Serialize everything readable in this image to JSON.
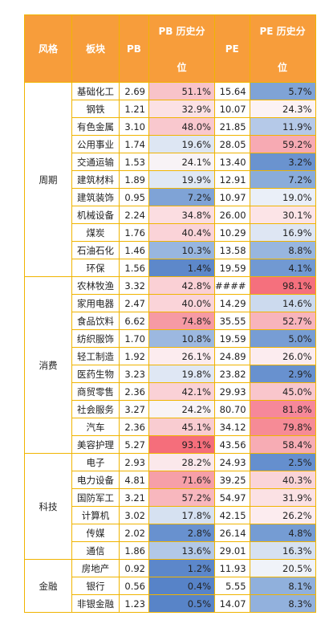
{
  "headers": {
    "style": "风格",
    "sector": "板块",
    "pb": "PB",
    "pb_hist": [
      "PB 历史分",
      "位"
    ],
    "pe": "PE",
    "pe_hist": [
      "PE 历史分",
      "位"
    ]
  },
  "groups": [
    {
      "style": "周期",
      "rows": [
        {
          "sector": "基础化工",
          "pb": "2.69",
          "pb_pct": "51.1%",
          "pb_color": "#f8c3c9",
          "pe": "15.64",
          "pe_pct": "5.7%",
          "pe_color": "#7fa3d6"
        },
        {
          "sector": "钢铁",
          "pb": "1.21",
          "pb_pct": "32.9%",
          "pb_color": "#fbe1e4",
          "pe": "10.07",
          "pe_pct": "24.3%",
          "pe_color": "#fcf2f4"
        },
        {
          "sector": "有色金属",
          "pb": "3.10",
          "pb_pct": "48.0%",
          "pb_color": "#f9c8ce",
          "pe": "21.85",
          "pe_pct": "11.9%",
          "pe_color": "#b5c9e8"
        },
        {
          "sector": "公用事业",
          "pb": "1.74",
          "pb_pct": "19.6%",
          "pb_color": "#dde6f3",
          "pe": "28.05",
          "pe_pct": "59.2%",
          "pe_color": "#f7aab3"
        },
        {
          "sector": "交通运输",
          "pb": "1.53",
          "pb_pct": "24.1%",
          "pb_color": "#f8f3f6",
          "pe": "13.40",
          "pe_pct": "3.2%",
          "pe_color": "#6a93cf"
        },
        {
          "sector": "建筑材料",
          "pb": "1.89",
          "pb_pct": "19.9%",
          "pb_color": "#e0e8f4",
          "pe": "12.91",
          "pe_pct": "7.2%",
          "pe_color": "#8aacda"
        },
        {
          "sector": "建筑装饰",
          "pb": "0.95",
          "pb_pct": "7.2%",
          "pb_color": "#7fa3d6",
          "pe": "10.97",
          "pe_pct": "19.0%",
          "pe_color": "#eaeff8"
        },
        {
          "sector": "机械设备",
          "pb": "2.24",
          "pb_pct": "34.8%",
          "pb_color": "#fbdde1",
          "pe": "26.00",
          "pe_pct": "30.1%",
          "pe_color": "#fce4e7"
        },
        {
          "sector": "煤炭",
          "pb": "1.76",
          "pb_pct": "40.4%",
          "pb_color": "#fad3d8",
          "pe": "10.29",
          "pe_pct": "16.9%",
          "pe_color": "#dee6f3"
        },
        {
          "sector": "石油石化",
          "pb": "1.46",
          "pb_pct": "10.3%",
          "pb_color": "#98b6df",
          "pe": "13.58",
          "pe_pct": "8.8%",
          "pe_color": "#98b6df"
        },
        {
          "sector": "环保",
          "pb": "1.56",
          "pb_pct": "1.4%",
          "pb_color": "#5d88ca",
          "pe": "19.59",
          "pe_pct": "4.1%",
          "pe_color": "#7199d2"
        }
      ]
    },
    {
      "style": "消费",
      "rows": [
        {
          "sector": "农林牧渔",
          "pb": "3.32",
          "pb_pct": "42.8%",
          "pb_color": "#fad0d5",
          "pe": "####",
          "pe_pct": "98.1%",
          "pe_color": "#f5707d"
        },
        {
          "sector": "家用电器",
          "pb": "2.47",
          "pb_pct": "40.0%",
          "pb_color": "#fad4d9",
          "pe": "14.29",
          "pe_pct": "14.6%",
          "pe_color": "#ccdaee"
        },
        {
          "sector": "食品饮料",
          "pb": "6.62",
          "pb_pct": "74.8%",
          "pb_color": "#f69aa4",
          "pe": "35.55",
          "pe_pct": "52.7%",
          "pe_color": "#f8b4bc"
        },
        {
          "sector": "纺织服饰",
          "pb": "1.70",
          "pb_pct": "10.8%",
          "pb_color": "#9cb8e0",
          "pe": "19.59",
          "pe_pct": "5.0%",
          "pe_color": "#779dd4"
        },
        {
          "sector": "轻工制造",
          "pb": "1.92",
          "pb_pct": "26.1%",
          "pb_color": "#fcecef",
          "pe": "24.89",
          "pe_pct": "26.0%",
          "pe_color": "#fcecef"
        },
        {
          "sector": "医药生物",
          "pb": "3.23",
          "pb_pct": "19.8%",
          "pb_color": "#dfe7f4",
          "pe": "23.82",
          "pe_pct": "2.9%",
          "pe_color": "#6891cf"
        },
        {
          "sector": "商贸零售",
          "pb": "2.36",
          "pb_pct": "42.1%",
          "pb_color": "#fad1d6",
          "pe": "29.93",
          "pe_pct": "45.0%",
          "pe_color": "#f9c6cc"
        },
        {
          "sector": "社会服务",
          "pb": "3.27",
          "pb_pct": "24.2%",
          "pb_color": "#f8f3f6",
          "pe": "80.70",
          "pe_pct": "81.8%",
          "pe_color": "#f6889a"
        },
        {
          "sector": "汽车",
          "pb": "2.36",
          "pb_pct": "45.1%",
          "pb_color": "#f9ccd1",
          "pe": "34.12",
          "pe_pct": "79.8%",
          "pe_color": "#f68b96"
        },
        {
          "sector": "美容护理",
          "pb": "5.27",
          "pb_pct": "93.1%",
          "pb_color": "#f56e7b",
          "pe": "43.56",
          "pe_pct": "58.4%",
          "pe_color": "#f7acb4"
        }
      ]
    },
    {
      "style": "科技",
      "rows": [
        {
          "sector": "电子",
          "pb": "2.93",
          "pb_pct": "28.2%",
          "pb_color": "#fbe8eb",
          "pe": "24.93",
          "pe_pct": "2.5%",
          "pe_color": "#658fce"
        },
        {
          "sector": "电力设备",
          "pb": "4.81",
          "pb_pct": "71.6%",
          "pb_color": "#f69fa8",
          "pe": "39.25",
          "pe_pct": "40.3%",
          "pe_color": "#fad4d8"
        },
        {
          "sector": "国防军工",
          "pb": "3.21",
          "pb_pct": "57.2%",
          "pb_color": "#f8b7be",
          "pe": "54.97",
          "pe_pct": "31.9%",
          "pe_color": "#fbe1e4"
        },
        {
          "sector": "计算机",
          "pb": "3.02",
          "pb_pct": "17.8%",
          "pb_color": "#d6e1f1",
          "pe": "42.15",
          "pe_pct": "26.2%",
          "pe_color": "#fcecef"
        },
        {
          "sector": "传媒",
          "pb": "2.02",
          "pb_pct": "2.8%",
          "pb_color": "#6891cf",
          "pe": "26.14",
          "pe_pct": "4.8%",
          "pe_color": "#759cd3"
        },
        {
          "sector": "通信",
          "pb": "1.86",
          "pb_pct": "13.6%",
          "pb_color": "#b2c8e7",
          "pe": "29.01",
          "pe_pct": "16.3%",
          "pe_color": "#d6e1f1"
        }
      ]
    },
    {
      "style": "金融",
      "rows": [
        {
          "sector": "房地产",
          "pb": "0.92",
          "pb_pct": "1.2%",
          "pb_color": "#5c87ca",
          "pe": "11.93",
          "pe_pct": "20.5%",
          "pe_color": "#f0f3f9"
        },
        {
          "sector": "银行",
          "pb": "0.56",
          "pb_pct": "0.4%",
          "pb_color": "#5783c8",
          "pe": "5.55",
          "pe_pct": "8.1%",
          "pe_color": "#90b0dc"
        },
        {
          "sector": "非银金融",
          "pb": "1.23",
          "pb_pct": "0.5%",
          "pb_color": "#5884c8",
          "pe": "14.07",
          "pe_pct": "8.3%",
          "pe_color": "#92b1dd"
        }
      ]
    }
  ]
}
